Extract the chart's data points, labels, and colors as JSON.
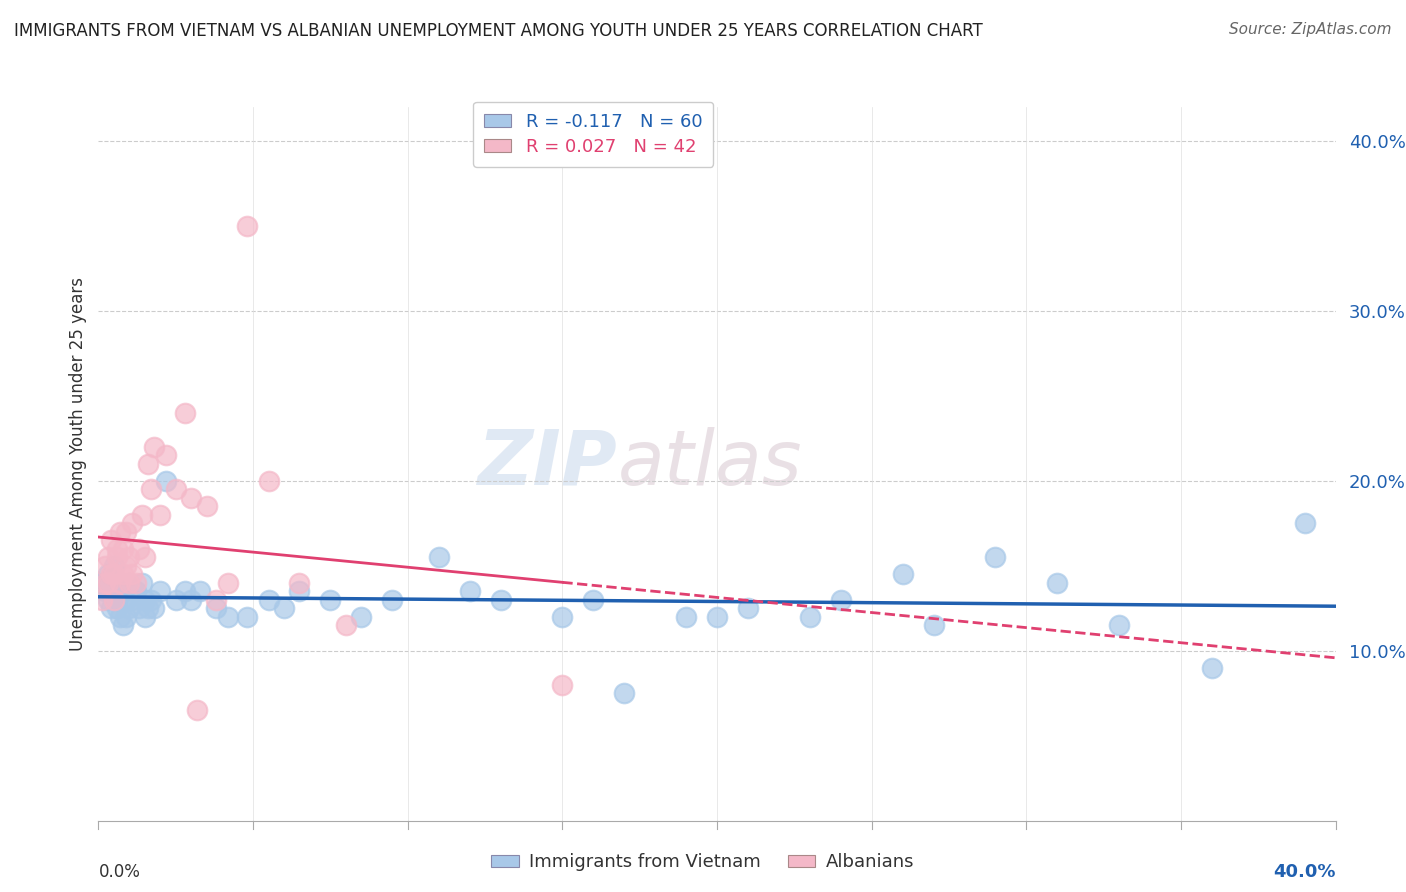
{
  "title": "IMMIGRANTS FROM VIETNAM VS ALBANIAN UNEMPLOYMENT AMONG YOUTH UNDER 25 YEARS CORRELATION CHART",
  "source": "Source: ZipAtlas.com",
  "ylabel": "Unemployment Among Youth under 25 years",
  "xlim": [
    0.0,
    0.4
  ],
  "ylim": [
    0.0,
    0.42
  ],
  "yticks": [
    0.1,
    0.2,
    0.3,
    0.4
  ],
  "ytick_labels": [
    "10.0%",
    "20.0%",
    "30.0%",
    "40.0%"
  ],
  "r_vietnam": -0.117,
  "n_vietnam": 60,
  "r_albanian": 0.027,
  "n_albanian": 42,
  "blue_scatter": "#A8C8E8",
  "pink_scatter": "#F4B8C8",
  "line_blue": "#2060B0",
  "line_pink": "#E04070",
  "watermark_zip": "ZIP",
  "watermark_atlas": "atlas",
  "vietnam_x": [
    0.001,
    0.002,
    0.003,
    0.003,
    0.004,
    0.004,
    0.005,
    0.005,
    0.006,
    0.006,
    0.007,
    0.007,
    0.008,
    0.008,
    0.009,
    0.009,
    0.01,
    0.01,
    0.011,
    0.012,
    0.013,
    0.014,
    0.015,
    0.015,
    0.016,
    0.017,
    0.018,
    0.02,
    0.022,
    0.025,
    0.028,
    0.03,
    0.033,
    0.038,
    0.042,
    0.048,
    0.055,
    0.06,
    0.065,
    0.075,
    0.085,
    0.095,
    0.11,
    0.12,
    0.13,
    0.15,
    0.16,
    0.17,
    0.19,
    0.2,
    0.21,
    0.23,
    0.24,
    0.26,
    0.27,
    0.29,
    0.31,
    0.33,
    0.36,
    0.39
  ],
  "vietnam_y": [
    0.14,
    0.135,
    0.13,
    0.145,
    0.14,
    0.125,
    0.135,
    0.15,
    0.13,
    0.125,
    0.14,
    0.12,
    0.135,
    0.115,
    0.13,
    0.12,
    0.14,
    0.125,
    0.13,
    0.135,
    0.125,
    0.14,
    0.13,
    0.12,
    0.125,
    0.13,
    0.125,
    0.135,
    0.2,
    0.13,
    0.135,
    0.13,
    0.135,
    0.125,
    0.12,
    0.12,
    0.13,
    0.125,
    0.135,
    0.13,
    0.12,
    0.13,
    0.155,
    0.135,
    0.13,
    0.12,
    0.13,
    0.075,
    0.12,
    0.12,
    0.125,
    0.12,
    0.13,
    0.145,
    0.115,
    0.155,
    0.14,
    0.115,
    0.09,
    0.175
  ],
  "albanian_x": [
    0.001,
    0.002,
    0.002,
    0.003,
    0.003,
    0.004,
    0.004,
    0.005,
    0.005,
    0.006,
    0.006,
    0.007,
    0.007,
    0.008,
    0.008,
    0.009,
    0.009,
    0.01,
    0.01,
    0.011,
    0.011,
    0.012,
    0.013,
    0.014,
    0.015,
    0.016,
    0.017,
    0.018,
    0.02,
    0.022,
    0.025,
    0.028,
    0.03,
    0.032,
    0.035,
    0.038,
    0.042,
    0.048,
    0.055,
    0.065,
    0.08,
    0.15
  ],
  "albanian_y": [
    0.13,
    0.14,
    0.15,
    0.14,
    0.155,
    0.145,
    0.165,
    0.13,
    0.145,
    0.155,
    0.16,
    0.14,
    0.17,
    0.145,
    0.16,
    0.15,
    0.17,
    0.14,
    0.155,
    0.145,
    0.175,
    0.14,
    0.16,
    0.18,
    0.155,
    0.21,
    0.195,
    0.22,
    0.18,
    0.215,
    0.195,
    0.24,
    0.19,
    0.065,
    0.185,
    0.13,
    0.14,
    0.35,
    0.2,
    0.14,
    0.115,
    0.08
  ]
}
